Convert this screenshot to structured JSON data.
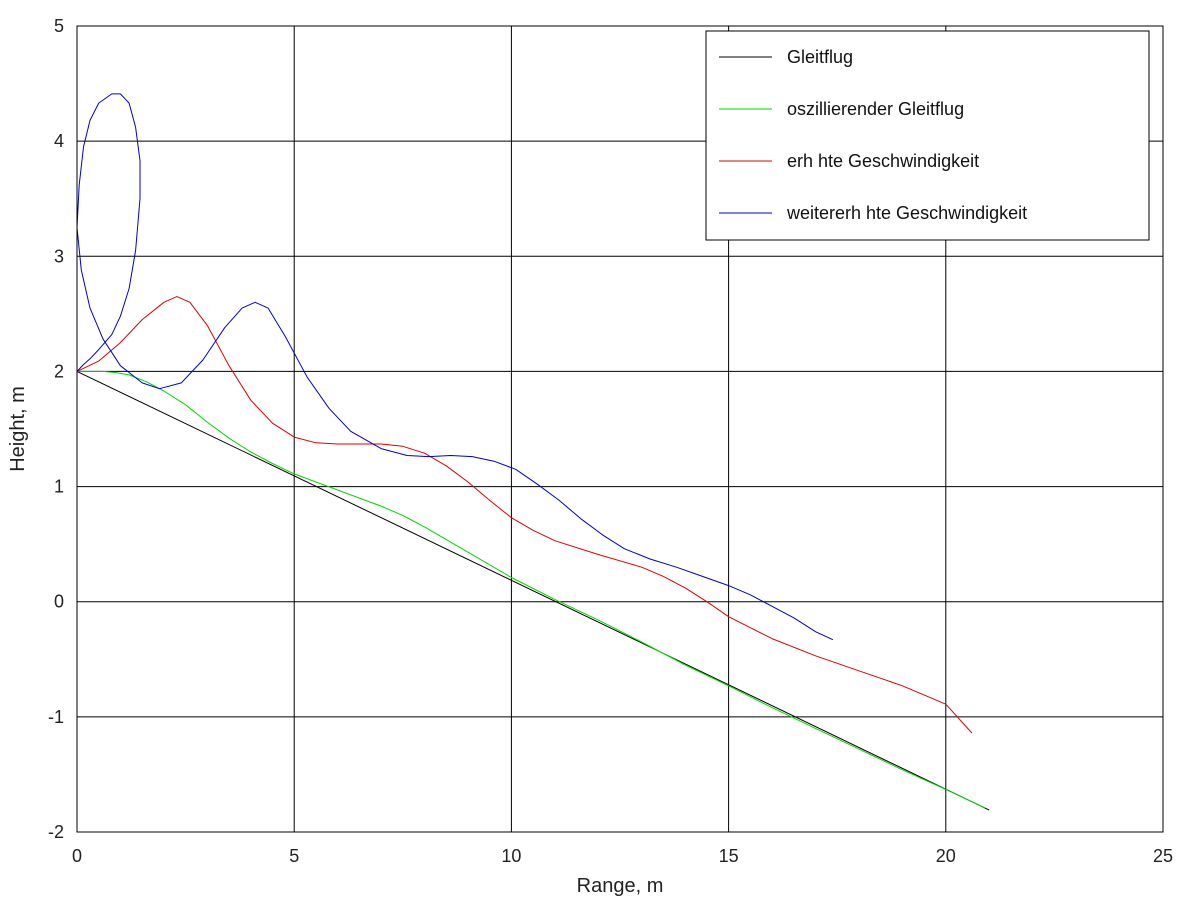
{
  "chart_data": {
    "type": "line",
    "title": "",
    "xlabel": "Range, m",
    "ylabel": "Height, m",
    "xlim": [
      0,
      25
    ],
    "ylim": [
      -2,
      5
    ],
    "xticks": [
      0,
      5,
      10,
      15,
      20,
      25
    ],
    "yticks": [
      -2,
      -1,
      0,
      1,
      2,
      3,
      4,
      5
    ],
    "xtick_labels": [
      "0",
      "5",
      "10",
      "15",
      "20",
      "25"
    ],
    "ytick_labels": [
      "-2",
      "-1",
      "0",
      "1",
      "2",
      "3",
      "4",
      "5"
    ],
    "grid": true,
    "legend_position": "top-right",
    "series": [
      {
        "name": "Gleitflug",
        "color": "#000000",
        "x": [
          0,
          21.0
        ],
        "y": [
          2.0,
          -1.81
        ]
      },
      {
        "name": "oszillierender Gleitflug",
        "color": "#00d800",
        "x": [
          0,
          0.3,
          0.6,
          0.9,
          1.2,
          1.6,
          2.0,
          2.5,
          3.0,
          3.5,
          4.0,
          4.5,
          5.0,
          5.5,
          6.0,
          6.5,
          7.0,
          7.5,
          8.0,
          9.0,
          10.0,
          11.0,
          12.0,
          13.0,
          14.0,
          15.0,
          16.0,
          17.0,
          18.0,
          19.0,
          20.0,
          20.9
        ],
        "y": [
          2.0,
          2.0,
          2.0,
          1.99,
          1.97,
          1.91,
          1.83,
          1.71,
          1.56,
          1.42,
          1.3,
          1.2,
          1.11,
          1.04,
          0.97,
          0.9,
          0.83,
          0.75,
          0.65,
          0.43,
          0.21,
          0.02,
          -0.16,
          -0.35,
          -0.55,
          -0.73,
          -0.92,
          -1.1,
          -1.28,
          -1.46,
          -1.63,
          -1.79
        ]
      },
      {
        "name": "erh hte Geschwindigkeit",
        "color": "#e00000",
        "x": [
          0,
          0.5,
          1.0,
          1.5,
          2.0,
          2.3,
          2.6,
          3.0,
          3.5,
          4.0,
          4.5,
          5.0,
          5.5,
          6.0,
          6.5,
          7.0,
          7.5,
          8.0,
          8.5,
          9.0,
          9.5,
          10.0,
          10.5,
          11.0,
          12.0,
          13.0,
          13.5,
          14.0,
          14.5,
          15.0,
          16.0,
          17.0,
          18.0,
          19.0,
          20.0,
          20.6
        ],
        "y": [
          2.0,
          2.09,
          2.25,
          2.45,
          2.6,
          2.65,
          2.6,
          2.4,
          2.05,
          1.75,
          1.55,
          1.43,
          1.38,
          1.37,
          1.37,
          1.37,
          1.35,
          1.29,
          1.18,
          1.04,
          0.88,
          0.73,
          0.62,
          0.53,
          0.41,
          0.3,
          0.22,
          0.12,
          0.0,
          -0.13,
          -0.32,
          -0.47,
          -0.6,
          -0.73,
          -0.89,
          -1.14
        ]
      },
      {
        "name": "weitererh hte Geschwindigkeit",
        "color": "#0000d0",
        "x": [
          0,
          0.05,
          0.15,
          0.3,
          0.5,
          0.8,
          1.0,
          1.2,
          1.35,
          1.45,
          1.45,
          1.35,
          1.2,
          1.0,
          0.8,
          0.5,
          0.3,
          0.15,
          0.05,
          0,
          0.1,
          0.3,
          0.6,
          1.0,
          1.5,
          1.9,
          2.4,
          2.9,
          3.4,
          3.8,
          4.1,
          4.4,
          4.8,
          5.3,
          5.8,
          6.3,
          7.0,
          7.6,
          8.1,
          8.6,
          9.1,
          9.6,
          10.1,
          10.6,
          11.1,
          11.6,
          12.1,
          12.6,
          13.2,
          13.8,
          14.4,
          15.0,
          15.5,
          16.0,
          16.5,
          17.0,
          17.4
        ],
        "y": [
          2.0,
          2.02,
          2.06,
          2.11,
          2.19,
          2.32,
          2.48,
          2.72,
          3.05,
          3.5,
          3.83,
          4.12,
          4.33,
          4.41,
          4.41,
          4.33,
          4.18,
          3.95,
          3.62,
          3.25,
          2.88,
          2.55,
          2.28,
          2.05,
          1.9,
          1.85,
          1.9,
          2.1,
          2.38,
          2.55,
          2.6,
          2.55,
          2.3,
          1.95,
          1.68,
          1.48,
          1.33,
          1.27,
          1.26,
          1.27,
          1.26,
          1.22,
          1.15,
          1.02,
          0.88,
          0.72,
          0.58,
          0.46,
          0.37,
          0.3,
          0.22,
          0.14,
          0.06,
          -0.04,
          -0.14,
          -0.26,
          -0.33
        ]
      }
    ]
  }
}
